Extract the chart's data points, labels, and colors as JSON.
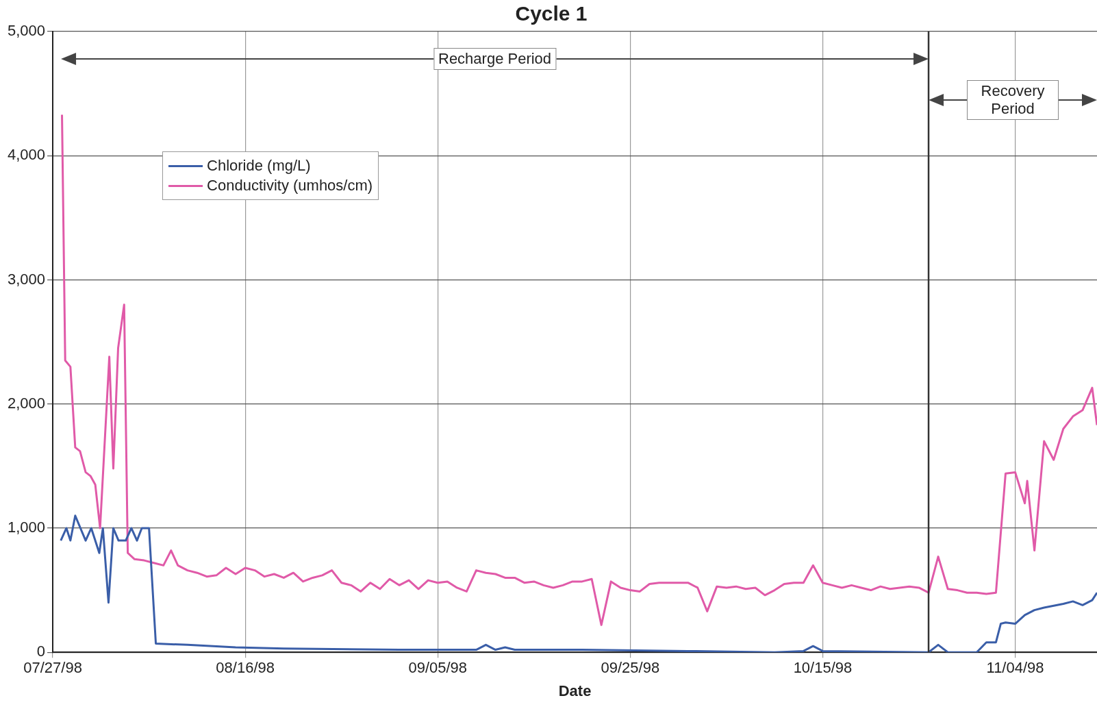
{
  "chart_data": {
    "type": "line",
    "title": "Cycle 1",
    "xlabel": "Date",
    "xlim": [
      "1998-07-27",
      "1998-11-12T12:00"
    ],
    "xticks": [
      {
        "value": "1998-07-27",
        "label": "07/27/98"
      },
      {
        "value": "1998-08-16",
        "label": "08/16/98"
      },
      {
        "value": "1998-09-05",
        "label": "09/05/98"
      },
      {
        "value": "1998-09-25",
        "label": "09/25/98"
      },
      {
        "value": "1998-10-15",
        "label": "10/15/98"
      },
      {
        "value": "1998-11-04",
        "label": "11/04/98"
      }
    ],
    "ylim": [
      0,
      5000
    ],
    "yticks": [
      0,
      {
        "value": 1000,
        "label": "1,000"
      },
      {
        "value": 2000,
        "label": "2,000"
      },
      {
        "value": 3000,
        "label": "3,000"
      },
      {
        "value": 4000,
        "label": "4,000"
      },
      {
        "value": 5000,
        "label": "5,000"
      }
    ],
    "grid": true,
    "legend": "top left",
    "marker": "none",
    "line_style": "solid",
    "ref_lines": [
      {
        "axis": "x",
        "value": "1998-10-26",
        "label": null,
        "color": "#333333"
      }
    ],
    "annotations": [
      "Recharge Period",
      "Recovery Period"
    ],
    "series": [
      {
        "name": "Chloride (mg/L)",
        "color": "#3a5ea8",
        "x": [
          "1998-07-27T20:00",
          "1998-07-28T10:00",
          "1998-07-28T20:00",
          "1998-07-29T08:00",
          "1998-07-30T10:00",
          "1998-07-31T00:00",
          "1998-07-31T20:00",
          "1998-08-01T05:00",
          "1998-08-01T19:00",
          "1998-08-02T07:00",
          "1998-08-02T20:00",
          "1998-08-03T14:00",
          "1998-08-04T04:00",
          "1998-08-04T18:00",
          "1998-08-05T06:00",
          "1998-08-06T00:00",
          "1998-08-06T17:00",
          "1998-08-10",
          "1998-08-15",
          "1998-08-20",
          "1998-09-01",
          "1998-09-09",
          "1998-09-10",
          "1998-09-11",
          "1998-09-12",
          "1998-09-13",
          "1998-09-20",
          "1998-10-01",
          "1998-10-10",
          "1998-10-13",
          "1998-10-14",
          "1998-10-15",
          "1998-10-26",
          "1998-10-27",
          "1998-10-28",
          "1998-10-31",
          "1998-11-01",
          "1998-11-02",
          "1998-11-02T12:00",
          "1998-11-03",
          "1998-11-04",
          "1998-11-05",
          "1998-11-06",
          "1998-11-07",
          "1998-11-09",
          "1998-11-10",
          "1998-11-11",
          "1998-11-12",
          "1998-11-12T12:00"
        ],
        "values": [
          900,
          1000,
          900,
          1100,
          900,
          1000,
          800,
          1000,
          400,
          1000,
          900,
          900,
          1000,
          900,
          1000,
          1000,
          70,
          60,
          40,
          30,
          20,
          20,
          60,
          20,
          40,
          20,
          20,
          10,
          0,
          10,
          50,
          10,
          0,
          60,
          0,
          0,
          80,
          80,
          230,
          240,
          230,
          300,
          340,
          360,
          390,
          410,
          380,
          420,
          480
        ]
      },
      {
        "name": "Conductivity (umhos/cm)",
        "color": "#e05aa8",
        "x": [
          "1998-07-27T23:00",
          "1998-07-28T07:00",
          "1998-07-28T20:00",
          "1998-07-29T08:00",
          "1998-07-29T20:00",
          "1998-07-30T10:00",
          "1998-07-30T22:00",
          "1998-07-31T10:00",
          "1998-07-31T22:00",
          "1998-08-01T21:00",
          "1998-08-02T07:00",
          "1998-08-02T19:00",
          "1998-08-03T10:00",
          "1998-08-03T19:00",
          "1998-08-04T12:00",
          "1998-08-05T12:00",
          "1998-08-06T12:00",
          "1998-08-07T12:00",
          "1998-08-08T07:00",
          "1998-08-09",
          "1998-08-10",
          "1998-08-11",
          "1998-08-12",
          "1998-08-13",
          "1998-08-14",
          "1998-08-15",
          "1998-08-16",
          "1998-08-17",
          "1998-08-18",
          "1998-08-19",
          "1998-08-20",
          "1998-08-21",
          "1998-08-22",
          "1998-08-23",
          "1998-08-24",
          "1998-08-25",
          "1998-08-26",
          "1998-08-27",
          "1998-08-28",
          "1998-08-29",
          "1998-08-30",
          "1998-08-31",
          "1998-09-01",
          "1998-09-02",
          "1998-09-03",
          "1998-09-04",
          "1998-09-05",
          "1998-09-06",
          "1998-09-07",
          "1998-09-08",
          "1998-09-09",
          "1998-09-10",
          "1998-09-11",
          "1998-09-12",
          "1998-09-13",
          "1998-09-14",
          "1998-09-15",
          "1998-09-16",
          "1998-09-17",
          "1998-09-18",
          "1998-09-19",
          "1998-09-20",
          "1998-09-21",
          "1998-09-22",
          "1998-09-23",
          "1998-09-24",
          "1998-09-25",
          "1998-09-26",
          "1998-09-27",
          "1998-09-28",
          "1998-09-29",
          "1998-09-30",
          "1998-10-01",
          "1998-10-02",
          "1998-10-03",
          "1998-10-04",
          "1998-10-05",
          "1998-10-06",
          "1998-10-07",
          "1998-10-08",
          "1998-10-09",
          "1998-10-10",
          "1998-10-11",
          "1998-10-12",
          "1998-10-13",
          "1998-10-14",
          "1998-10-15",
          "1998-10-16",
          "1998-10-17",
          "1998-10-18",
          "1998-10-19",
          "1998-10-20",
          "1998-10-21",
          "1998-10-22",
          "1998-10-23",
          "1998-10-24",
          "1998-10-25",
          "1998-10-26",
          "1998-10-27",
          "1998-10-28",
          "1998-10-29",
          "1998-10-30",
          "1998-10-31",
          "1998-11-01",
          "1998-11-02",
          "1998-11-03",
          "1998-11-04",
          "1998-11-05",
          "1998-11-05T06:00",
          "1998-11-06",
          "1998-11-07",
          "1998-11-08",
          "1998-11-09",
          "1998-11-10",
          "1998-11-11",
          "1998-11-12",
          "1998-11-12T12:00"
        ],
        "values": [
          4330,
          2350,
          2300,
          1650,
          1620,
          1450,
          1420,
          1350,
          1000,
          2380,
          1480,
          2450,
          2800,
          800,
          750,
          740,
          720,
          700,
          820,
          700,
          660,
          640,
          610,
          620,
          680,
          630,
          680,
          660,
          610,
          630,
          600,
          640,
          570,
          600,
          620,
          660,
          560,
          540,
          490,
          560,
          510,
          590,
          540,
          580,
          510,
          580,
          560,
          570,
          520,
          490,
          660,
          640,
          630,
          600,
          600,
          560,
          570,
          540,
          520,
          540,
          570,
          570,
          590,
          220,
          570,
          520,
          500,
          490,
          550,
          560,
          560,
          560,
          560,
          520,
          330,
          530,
          520,
          530,
          510,
          520,
          460,
          500,
          550,
          560,
          560,
          700,
          560,
          540,
          520,
          540,
          520,
          500,
          530,
          510,
          520,
          530,
          520,
          480,
          770,
          510,
          500,
          480,
          480,
          470,
          480,
          1440,
          1450,
          1200,
          1380,
          820,
          1700,
          1550,
          1800,
          1900,
          1950,
          2130,
          1830
        ]
      }
    ]
  }
}
